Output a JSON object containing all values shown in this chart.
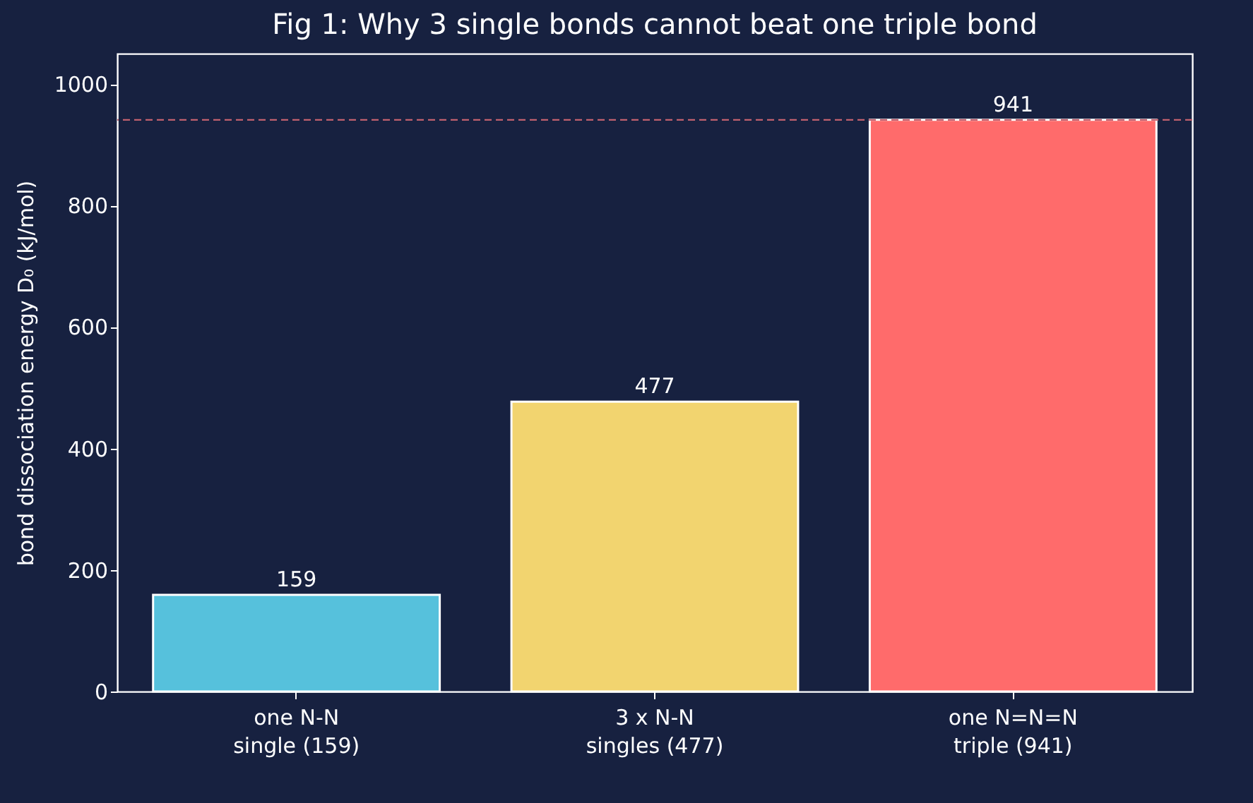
{
  "chart_data": {
    "type": "bar",
    "title": "Fig 1: Why 3 single bonds cannot beat one triple bond",
    "ylabel": "bond dissociation energy D₀ (kJ/mol)",
    "categories": [
      "one N-N\nsingle (159)",
      "3 x N-N\nsingles (477)",
      "one N=N=N\ntriple (941)"
    ],
    "values": [
      159,
      477,
      941
    ],
    "colors": [
      "#56c1dc",
      "#f2d46f",
      "#ff6b6b"
    ],
    "ylim": [
      0,
      1050
    ],
    "yticks": [
      0,
      200,
      400,
      600,
      800,
      1000
    ],
    "grid": false,
    "data_labels": true,
    "ref_lines": [
      {
        "axis": "y",
        "value": 941,
        "color": "#c0606e",
        "line_style": "dashed"
      }
    ]
  }
}
